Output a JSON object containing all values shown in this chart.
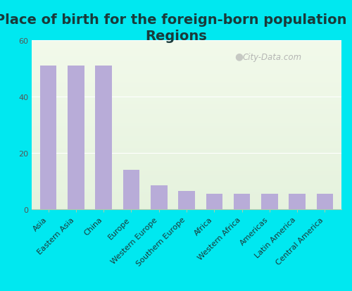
{
  "title": "Place of birth for the foreign-born population -\nRegions",
  "categories": [
    "Asia",
    "Eastern Asia",
    "China",
    "Europe",
    "Western Europe",
    "Southern Europe",
    "Africa",
    "Western Africa",
    "Americas",
    "Latin America",
    "Central America"
  ],
  "values": [
    51,
    51,
    51,
    14,
    8.5,
    6.5,
    5.5,
    5.5,
    5.5,
    5.5,
    5.5
  ],
  "bar_color": "#b8acd8",
  "bg_outer": "#00e8f0",
  "ylim": [
    0,
    60
  ],
  "yticks": [
    0,
    20,
    40,
    60
  ],
  "title_fontsize": 14,
  "tick_fontsize": 8,
  "watermark": "City-Data.com"
}
